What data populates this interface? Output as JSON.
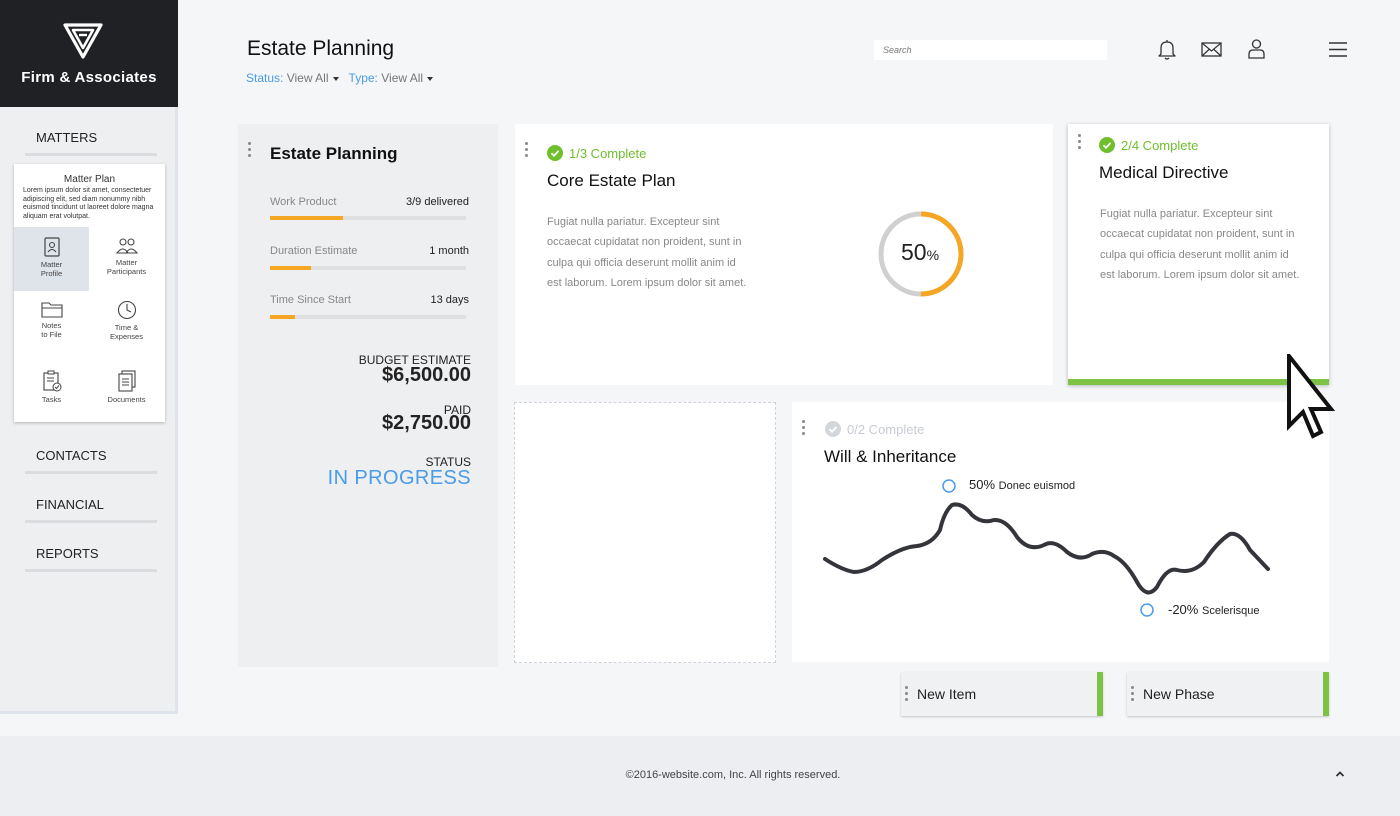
{
  "brand": {
    "name": "Firm & Associates",
    "logo_icon": "triangle-logo-icon"
  },
  "header": {
    "title": "Estate Planning",
    "filters": [
      {
        "label": "Status:",
        "value": "View All"
      },
      {
        "label": "Type:",
        "value": "View All"
      }
    ],
    "search_placeholder": "Search",
    "icons": [
      "bell-icon",
      "mail-icon",
      "user-icon",
      "menu-icon"
    ]
  },
  "sidebar": {
    "nav": [
      "MATTERS",
      "CONTACTS",
      "FINANCIAL",
      "REPORTS"
    ],
    "matter_plan": {
      "title": "Matter Plan",
      "description": "Lorem ipsum dolor sit amet, consectetuer adipiscing elit, sed diam nonummy nibh euismod tincidunt ut laoreet dolore magna aliquam erat volutpat.",
      "items": [
        {
          "line1": "Matter",
          "line2": "Profile",
          "icon": "profile-icon",
          "active": true
        },
        {
          "line1": "Matter",
          "line2": "Participants",
          "icon": "participants-icon"
        },
        {
          "line1": "Notes",
          "line2": "to File",
          "icon": "folder-icon"
        },
        {
          "line1": "Time &",
          "line2": "Expenses",
          "icon": "clock-icon"
        },
        {
          "line1": "Tasks",
          "line2": "",
          "icon": "tasks-icon"
        },
        {
          "line1": "Documents",
          "line2": "",
          "icon": "documents-icon"
        }
      ]
    }
  },
  "summary": {
    "title": "Estate Planning",
    "metrics": [
      {
        "label": "Work Product",
        "value": "3/9 delivered",
        "progress": 0.37
      },
      {
        "label": "Duration Estimate",
        "value": "1 month",
        "progress": 0.21
      },
      {
        "label": "Time Since Start",
        "value": "13 days",
        "progress": 0.13
      }
    ],
    "budget_label": "BUDGET ESTIMATE",
    "budget_value": "$6,500.00",
    "paid_label": "PAID",
    "paid_value": "$2,750.00",
    "status_label": "STATUS",
    "status_value": "IN PROGRESS"
  },
  "cards": {
    "core": {
      "complete": "1/3 Complete",
      "title": "Core Estate Plan",
      "body": "Fugiat nulla pariatur. Excepteur sint occaecat cupidatat non proident, sunt in culpa qui officia deserunt mollit anim id est laborum. Lorem ipsum dolor sit amet.",
      "donut_value": "50",
      "donut_unit": "%",
      "donut_fraction": 0.5
    },
    "medical": {
      "complete": "2/4 Complete",
      "title": "Medical Directive",
      "body": "Fugiat nulla pariatur. Excepteur sint occaecat cupidatat non proident, sunt in culpa qui officia deserunt mollit anim id est laborum. Lorem ipsum dolor sit amet."
    },
    "will": {
      "complete": "0/2 Complete",
      "title": "Will & Inheritance",
      "annotation_high_value": "50%",
      "annotation_high_text": "Donec euismod",
      "annotation_low_value": "-20%",
      "annotation_low_text": "Scelerisque"
    }
  },
  "buttons": {
    "new_item": "New Item",
    "new_phase": "New Phase"
  },
  "colors": {
    "accent_blue": "#4a9be8",
    "accent_green": "#7dc242",
    "progress_orange": "#f5a623",
    "check_green": "#6fbf2c"
  },
  "footer": {
    "copyright": "©2016-website.com, Inc. All rights reserved.",
    "scroll_icon": "chevron-up-icon"
  }
}
